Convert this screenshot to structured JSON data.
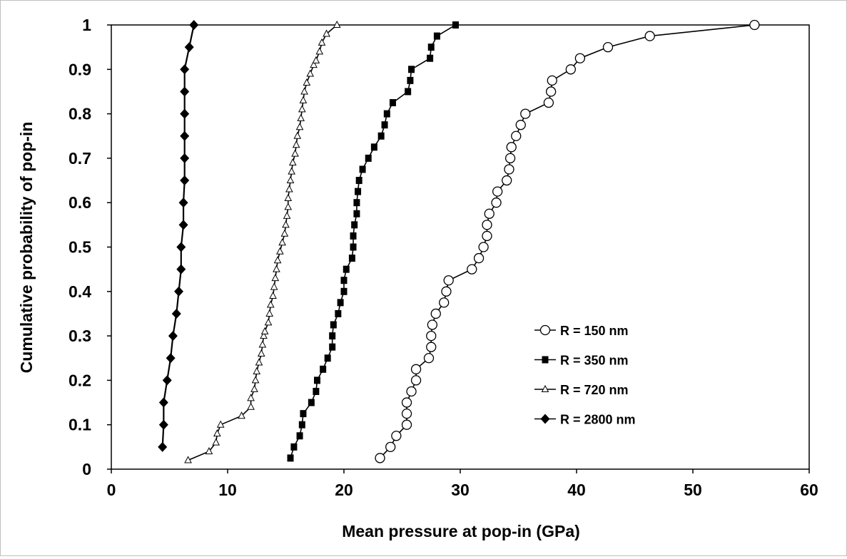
{
  "chart_data": {
    "type": "scatter",
    "title": "",
    "xlabel": "Mean pressure at pop-in (GPa)",
    "ylabel": "Cumulative probability of pop-in",
    "xlim": [
      0,
      60
    ],
    "ylim": [
      0,
      1
    ],
    "x_ticks": [
      0,
      10,
      20,
      30,
      40,
      50,
      60
    ],
    "y_ticks": [
      0,
      0.1,
      0.2,
      0.3,
      0.4,
      0.5,
      0.6,
      0.7,
      0.8,
      0.9,
      1
    ],
    "grid": false,
    "legend_position": "right-middle",
    "series": [
      {
        "name": "R = 150 nm",
        "marker": "open-circle",
        "color": "#000000",
        "points": [
          [
            23.1,
            0.025
          ],
          [
            24.0,
            0.05
          ],
          [
            24.5,
            0.075
          ],
          [
            25.4,
            0.1
          ],
          [
            25.4,
            0.125
          ],
          [
            25.4,
            0.15
          ],
          [
            25.8,
            0.175
          ],
          [
            26.2,
            0.2
          ],
          [
            26.2,
            0.225
          ],
          [
            27.3,
            0.25
          ],
          [
            27.5,
            0.275
          ],
          [
            27.5,
            0.3
          ],
          [
            27.6,
            0.325
          ],
          [
            27.9,
            0.35
          ],
          [
            28.6,
            0.375
          ],
          [
            28.8,
            0.4
          ],
          [
            29.0,
            0.425
          ],
          [
            31.0,
            0.45
          ],
          [
            31.6,
            0.475
          ],
          [
            32.0,
            0.5
          ],
          [
            32.3,
            0.525
          ],
          [
            32.3,
            0.55
          ],
          [
            32.5,
            0.575
          ],
          [
            33.1,
            0.6
          ],
          [
            33.2,
            0.625
          ],
          [
            34.0,
            0.65
          ],
          [
            34.2,
            0.675
          ],
          [
            34.3,
            0.7
          ],
          [
            34.4,
            0.725
          ],
          [
            34.8,
            0.75
          ],
          [
            35.2,
            0.775
          ],
          [
            35.6,
            0.8
          ],
          [
            37.6,
            0.825
          ],
          [
            37.8,
            0.85
          ],
          [
            37.9,
            0.875
          ],
          [
            39.5,
            0.9
          ],
          [
            40.3,
            0.925
          ],
          [
            42.7,
            0.95
          ],
          [
            46.3,
            0.975
          ],
          [
            55.3,
            1.0
          ]
        ]
      },
      {
        "name": "R = 350 nm",
        "marker": "filled-square",
        "color": "#000000",
        "points": [
          [
            15.4,
            0.025
          ],
          [
            15.7,
            0.05
          ],
          [
            16.2,
            0.075
          ],
          [
            16.4,
            0.1
          ],
          [
            16.5,
            0.125
          ],
          [
            17.2,
            0.15
          ],
          [
            17.6,
            0.175
          ],
          [
            17.7,
            0.2
          ],
          [
            18.2,
            0.225
          ],
          [
            18.6,
            0.25
          ],
          [
            19.0,
            0.275
          ],
          [
            19.0,
            0.3
          ],
          [
            19.1,
            0.325
          ],
          [
            19.5,
            0.35
          ],
          [
            19.7,
            0.375
          ],
          [
            20.0,
            0.4
          ],
          [
            20.0,
            0.425
          ],
          [
            20.2,
            0.45
          ],
          [
            20.7,
            0.475
          ],
          [
            20.8,
            0.5
          ],
          [
            20.8,
            0.525
          ],
          [
            20.9,
            0.55
          ],
          [
            21.1,
            0.575
          ],
          [
            21.1,
            0.6
          ],
          [
            21.2,
            0.625
          ],
          [
            21.3,
            0.65
          ],
          [
            21.6,
            0.675
          ],
          [
            22.1,
            0.7
          ],
          [
            22.6,
            0.725
          ],
          [
            23.2,
            0.75
          ],
          [
            23.5,
            0.775
          ],
          [
            23.7,
            0.8
          ],
          [
            24.2,
            0.825
          ],
          [
            25.5,
            0.85
          ],
          [
            25.7,
            0.875
          ],
          [
            25.8,
            0.9
          ],
          [
            27.4,
            0.925
          ],
          [
            27.5,
            0.95
          ],
          [
            28.0,
            0.975
          ],
          [
            29.6,
            1.0
          ]
        ]
      },
      {
        "name": "R = 720 nm",
        "marker": "open-triangle",
        "color": "#000000",
        "points": [
          [
            6.6,
            0.02
          ],
          [
            8.4,
            0.04
          ],
          [
            9.0,
            0.06
          ],
          [
            9.1,
            0.08
          ],
          [
            9.4,
            0.1
          ],
          [
            11.2,
            0.12
          ],
          [
            12.0,
            0.14
          ],
          [
            12.0,
            0.16
          ],
          [
            12.3,
            0.18
          ],
          [
            12.4,
            0.2
          ],
          [
            12.5,
            0.22
          ],
          [
            12.7,
            0.24
          ],
          [
            12.9,
            0.26
          ],
          [
            13.0,
            0.28
          ],
          [
            13.1,
            0.3
          ],
          [
            13.2,
            0.31
          ],
          [
            13.5,
            0.33
          ],
          [
            13.6,
            0.35
          ],
          [
            13.7,
            0.37
          ],
          [
            13.9,
            0.39
          ],
          [
            14.0,
            0.41
          ],
          [
            14.1,
            0.43
          ],
          [
            14.2,
            0.45
          ],
          [
            14.3,
            0.47
          ],
          [
            14.5,
            0.49
          ],
          [
            14.7,
            0.51
          ],
          [
            14.9,
            0.53
          ],
          [
            15.0,
            0.55
          ],
          [
            15.1,
            0.57
          ],
          [
            15.2,
            0.59
          ],
          [
            15.2,
            0.61
          ],
          [
            15.3,
            0.63
          ],
          [
            15.4,
            0.65
          ],
          [
            15.5,
            0.67
          ],
          [
            15.6,
            0.69
          ],
          [
            15.8,
            0.71
          ],
          [
            15.9,
            0.73
          ],
          [
            16.0,
            0.75
          ],
          [
            16.2,
            0.77
          ],
          [
            16.3,
            0.79
          ],
          [
            16.4,
            0.81
          ],
          [
            16.5,
            0.83
          ],
          [
            16.6,
            0.85
          ],
          [
            16.8,
            0.87
          ],
          [
            17.1,
            0.89
          ],
          [
            17.4,
            0.91
          ],
          [
            17.6,
            0.92
          ],
          [
            17.9,
            0.94
          ],
          [
            18.1,
            0.96
          ],
          [
            18.5,
            0.98
          ],
          [
            19.4,
            1.0
          ]
        ]
      },
      {
        "name": "R = 2800 nm",
        "marker": "filled-diamond",
        "color": "#000000",
        "points": [
          [
            4.4,
            0.05
          ],
          [
            4.5,
            0.1
          ],
          [
            4.5,
            0.15
          ],
          [
            4.8,
            0.2
          ],
          [
            5.1,
            0.25
          ],
          [
            5.3,
            0.3
          ],
          [
            5.6,
            0.35
          ],
          [
            5.8,
            0.4
          ],
          [
            6.0,
            0.45
          ],
          [
            6.0,
            0.5
          ],
          [
            6.2,
            0.55
          ],
          [
            6.2,
            0.6
          ],
          [
            6.3,
            0.65
          ],
          [
            6.3,
            0.7
          ],
          [
            6.3,
            0.75
          ],
          [
            6.3,
            0.8
          ],
          [
            6.3,
            0.85
          ],
          [
            6.3,
            0.9
          ],
          [
            6.7,
            0.95
          ],
          [
            7.1,
            1.0
          ]
        ]
      }
    ]
  }
}
